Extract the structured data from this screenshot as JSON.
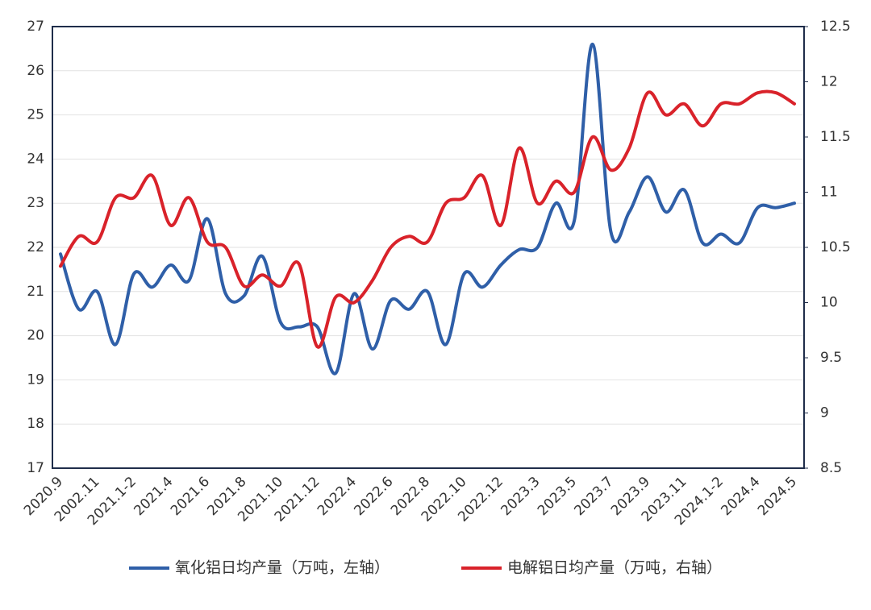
{
  "chart_data": {
    "type": "line",
    "categories": [
      "2020.9",
      null,
      "2002.11",
      null,
      "2021.1-2",
      null,
      "2021.4",
      null,
      "2021.6",
      null,
      "2021.8",
      null,
      "2021.10",
      null,
      "2021.12",
      null,
      "2022.4",
      null,
      "2022.6",
      null,
      "2022.8",
      null,
      "2022.10",
      null,
      "2022.12",
      null,
      "2023.3",
      null,
      "2023.5",
      null,
      "2023.7",
      null,
      "2023.9",
      null,
      "2023.11",
      null,
      "2024.1-2",
      null,
      "2024.4",
      null,
      "2024.5"
    ],
    "series": [
      {
        "name": "氧化铝日均产量（万吨，左轴）",
        "color": "#2f5fa8",
        "axis": "y",
        "values": [
          21.85,
          20.6,
          21.0,
          19.8,
          21.4,
          21.1,
          21.6,
          21.25,
          22.65,
          20.95,
          20.9,
          21.8,
          20.3,
          20.2,
          20.2,
          19.15,
          20.95,
          19.7,
          20.8,
          20.6,
          21.0,
          19.8,
          21.4,
          21.1,
          21.6,
          21.95,
          22.0,
          23.0,
          22.6,
          26.6,
          22.35,
          22.8,
          23.6,
          22.8,
          23.3,
          22.1,
          22.3,
          22.1,
          22.9,
          22.9,
          23.0
        ]
      },
      {
        "name": "电解铝日均产量（万吨，右轴）",
        "color": "#d9222a",
        "axis": "y2",
        "values": [
          10.33,
          10.6,
          10.55,
          10.95,
          10.95,
          11.15,
          10.7,
          10.95,
          10.55,
          10.5,
          10.15,
          10.25,
          10.15,
          10.35,
          9.6,
          10.05,
          10.0,
          10.2,
          10.5,
          10.6,
          10.55,
          10.9,
          10.95,
          11.15,
          10.7,
          11.4,
          10.9,
          11.1,
          11.0,
          11.5,
          11.2,
          11.4,
          11.9,
          11.7,
          11.8,
          11.6,
          11.8,
          11.8,
          11.9,
          11.9,
          11.8
        ]
      }
    ],
    "ylim": [
      17,
      27
    ],
    "yticks": [
      17,
      18,
      19,
      20,
      21,
      22,
      23,
      24,
      25,
      26,
      27
    ],
    "y2lim": [
      8.5,
      12.5
    ],
    "y2ticks": [
      8.5,
      9,
      9.5,
      10,
      10.5,
      11,
      11.5,
      12,
      12.5
    ],
    "grid": true,
    "legend": "bottom"
  }
}
